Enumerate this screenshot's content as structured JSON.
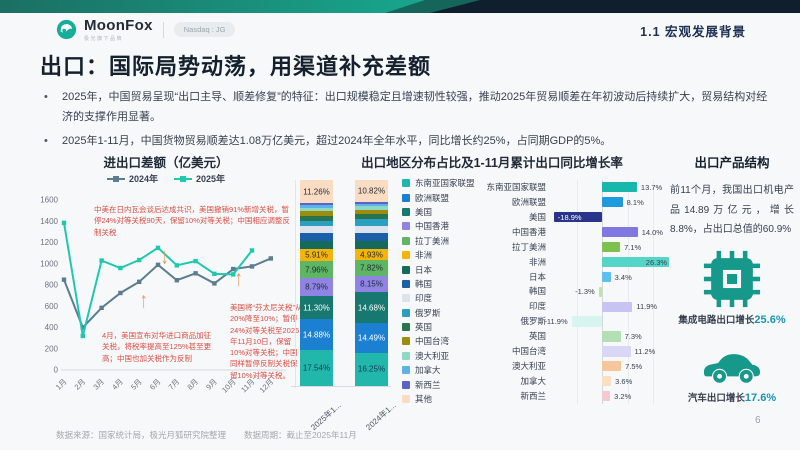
{
  "header": {
    "logo_text": "MoonFox",
    "logo_subtext": "极光旗下品牌",
    "logo_badge": "Nasdaq : JG",
    "section": "1.1 宏观发展背景"
  },
  "title": "出口：国际局势动荡，用渠道补充差额",
  "bullets": [
    "2025年，中国贸易呈现“出口主导、顺差修复”的特征：出口规模稳定且增速韧性较强，推动2025年贸易顺差在年初波动后持续扩大，贸易结构对经济的支撑作用显著。",
    "2025年1-11月，中国货物贸易顺差达1.08万亿美元，超过2024年全年水平，同比增长约25%，占同期GDP的5%。"
  ],
  "theme": {
    "accent_teal": "#16a08f",
    "banner_navy": "#0f1f2d",
    "annotation_red": "#e04b3e",
    "arrow_orange": "#f0924e",
    "stat_value_color": "#1695b4"
  },
  "chart_data": [
    {
      "type": "line",
      "title": "进出口差额（亿美元）",
      "x": [
        "1月",
        "2月",
        "3月",
        "4月",
        "5月",
        "6月",
        "7月",
        "8月",
        "9月",
        "10月",
        "11月",
        "12月"
      ],
      "series": [
        {
          "name": "2024年",
          "color": "#5a7d92",
          "values": [
            850,
            400,
            585,
            725,
            830,
            990,
            845,
            910,
            815,
            950,
            975,
            1050
          ]
        },
        {
          "name": "2025年",
          "color": "#1ec9b0",
          "values": [
            1385,
            320,
            1030,
            960,
            1035,
            1150,
            985,
            1025,
            905,
            900,
            1125
          ]
        }
      ],
      "ylim": [
        0,
        1600
      ],
      "ytick_step": 200,
      "legend_position": "top",
      "grid": false,
      "annotations": [
        {
          "text": "中美在日内瓦会谈后达成共识，美国撤销91%新增关税，暂停24%对等关税90天，保留10%对等关税；中国相应调整反制关税",
          "arrow": "down"
        },
        {
          "text": "4月，美国宣布对华进口商品加征关税，将税率提高至125%甚至更高；中国也加关税作为反制",
          "arrow": "up"
        },
        {
          "text": "美国将“芬太尼关税”从20%降至10%；暂停24%对等关税至2026年11月10日，保留10%对等关税；中国同样暂停反制关税保留10%对等关税。",
          "arrow": "up"
        }
      ]
    },
    {
      "type": "bar",
      "subtype": "stacked-percent",
      "title": "出口地区分布占比及1-11月累计出口同比增长率",
      "categories": [
        "2025年1...",
        "2024年1..."
      ],
      "note": "unlabeled thin segments estimated from pixels; labeled values exact",
      "regions": [
        {
          "name": "东南亚国家联盟",
          "color": "#21b8ab",
          "values": [
            17.54,
            16.25
          ],
          "labeled": true,
          "label_color": "#123a52"
        },
        {
          "name": "欧洲联盟",
          "color": "#1b80d2",
          "values": [
            14.88,
            14.49
          ],
          "labeled": true,
          "label_color": "#ffffff"
        },
        {
          "name": "美国",
          "color": "#16786e",
          "values": [
            11.3,
            14.68
          ],
          "labeled": true,
          "label_color": "#ffffff"
        },
        {
          "name": "中国香港",
          "color": "#8f83e3",
          "values": [
            8.79,
            8.15
          ],
          "labeled": true,
          "label_color": "#1f2937"
        },
        {
          "name": "拉丁美洲",
          "color": "#5eb564",
          "values": [
            7.96,
            7.82
          ],
          "labeled": true,
          "label_color": "#1f2937"
        },
        {
          "name": "非洲",
          "color": "#f5b40a",
          "values": [
            5.91,
            4.93
          ],
          "labeled": true,
          "label_color": "#1f2937"
        },
        {
          "name": "日本",
          "color": "#156a5c",
          "values": [
            4.0,
            4.2
          ],
          "labeled": false
        },
        {
          "name": "韩国",
          "color": "#1b5fa8",
          "values": [
            3.9,
            4.0
          ],
          "labeled": false
        },
        {
          "name": "印度",
          "color": "#dce3ec",
          "values": [
            3.4,
            3.4
          ],
          "labeled": false
        },
        {
          "name": "俄罗斯",
          "color": "#2b9fc2",
          "values": [
            2.7,
            3.2
          ],
          "labeled": false
        },
        {
          "name": "英国",
          "color": "#27744f",
          "values": [
            2.3,
            2.2
          ],
          "labeled": false
        },
        {
          "name": "中国台湾",
          "color": "#9d8d0e",
          "values": [
            2.1,
            2.0
          ],
          "labeled": false
        },
        {
          "name": "澳大利亚",
          "color": "#8fd9c4",
          "values": [
            1.9,
            1.9
          ],
          "labeled": false
        },
        {
          "name": "加拿大",
          "color": "#5ab4e8",
          "values": [
            1.4,
            1.4
          ],
          "labeled": false
        },
        {
          "name": "新西兰",
          "color": "#5a63c8",
          "values": [
            0.66,
            0.56
          ],
          "labeled": false
        },
        {
          "name": "其他",
          "color": "#f9dcc2",
          "values": [
            11.26,
            10.82
          ],
          "labeled": true,
          "label_color": "#1f2937"
        }
      ]
    },
    {
      "type": "bar",
      "subtype": "horizontal",
      "title": "1-11月累计出口同比增长率",
      "categories": [
        "东南亚国家联盟",
        "欧洲联盟",
        "美国",
        "中国香港",
        "拉丁美洲",
        "非洲",
        "日本",
        "韩国",
        "印度",
        "俄罗斯",
        "英国",
        "中国台湾",
        "澳大利亚",
        "加拿大",
        "新西兰"
      ],
      "values": [
        13.7,
        8.1,
        -18.9,
        14.0,
        7.1,
        26.3,
        3.4,
        -1.3,
        11.9,
        -11.9,
        7.3,
        11.2,
        7.5,
        3.6,
        3.2
      ],
      "colors": [
        "#17b8ab",
        "#1e9ae0",
        "#29348b",
        "#8077e0",
        "#7cc24c",
        "#56d4c8",
        "#5cc1ee",
        "#b8e5a8",
        "#c7c3f2",
        "#d8f4f0",
        "#b2e0b4",
        "#d9d6f7",
        "#f6c79a",
        "#fadfc2",
        "#f3c9d2"
      ]
    }
  ],
  "product": {
    "title": "出口产品结构",
    "paragraph": "前11个月，我国出口机电产品14.89万亿元，增长8.8%，占出口总值的60.9%",
    "items": [
      {
        "icon": "chip-icon",
        "label": "集成电路出口增长",
        "value": "25.6%"
      },
      {
        "icon": "car-icon",
        "label": "汽车出口增长",
        "value": "17.6%"
      }
    ]
  },
  "footer": {
    "source": "数据来源：国家统计局，极光月狐研究院整理",
    "period": "数据周期：截止至2025年11月",
    "page": "6"
  }
}
